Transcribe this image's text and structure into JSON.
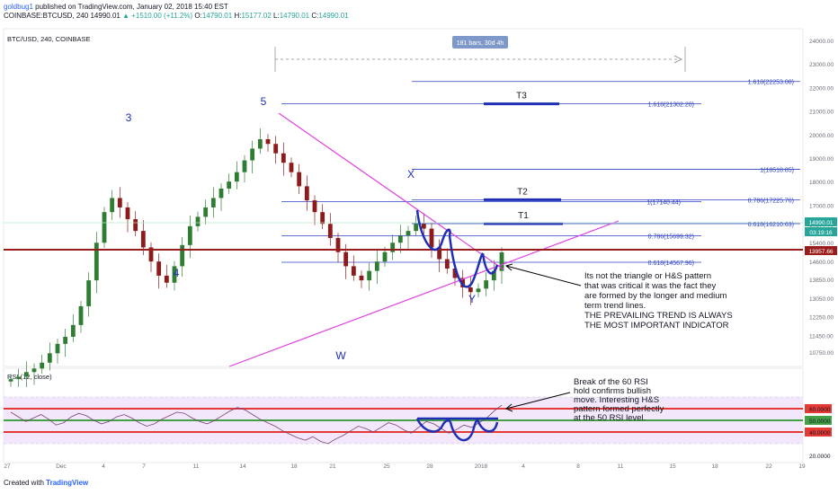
{
  "header": {
    "user": "goldbug1",
    "published": "published on TradingView.com, January 02, 2018 15:40 EST",
    "symbol": "COINBASE:BTCUSD, 240",
    "last": "14990.01",
    "change": "▲ +1510.00 (+11.2%)",
    "o_label": "O:",
    "o": "14790.01",
    "h_label": "H:",
    "h": "15177.02",
    "l_label": "L:",
    "l": "14790.01",
    "c_label": "C:",
    "c": "14990.01"
  },
  "footer": {
    "created_with": "Created with",
    "brand": "TradingView"
  },
  "chart_data": [
    {
      "type": "candlestick",
      "title": "BTC/USD, 240, COINBASE",
      "x_ticks": [
        "27",
        "Dec",
        "4",
        "7",
        "11",
        "14",
        "18",
        "21",
        "25",
        "28",
        "2018",
        "4",
        "8",
        "11",
        "15",
        "18",
        "22",
        "19"
      ],
      "y_ticks": [
        "24000.00",
        "23000.00",
        "22000.00",
        "21000.00",
        "20000.00",
        "19000.00",
        "18000.00",
        "17000.00",
        "16200.00",
        "15400.00",
        "14600.00",
        "13850.00",
        "13050.00",
        "12250.00",
        "11450.00",
        "10750.00"
      ],
      "price_labels": {
        "last": "14990.01",
        "countdown": "03:19:16",
        "level": "13957.66"
      },
      "measure_label": "181 bars, 30d 4h",
      "fib_levels": [
        {
          "label": "1.618(22253.08)",
          "value": 22253.08
        },
        {
          "label": "1.618(21302.20)",
          "value": 21302.2
        },
        {
          "label": "1(18518.85)",
          "value": 18518.85
        },
        {
          "label": "1(17140.44)",
          "value": 17140.44
        },
        {
          "label": "0.786(17225.76)",
          "value": 17225.76
        },
        {
          "label": "0.618(16210.63)",
          "value": 16210.63
        },
        {
          "label": "0.786(15699.32)",
          "value": 15699.32
        },
        {
          "label": "0.618(14567.96)",
          "value": 14567.96
        }
      ],
      "targets": [
        "T3",
        "T2",
        "T1"
      ],
      "wave_labels": [
        "3",
        "5",
        "4",
        "W",
        "X",
        "Y"
      ],
      "annotation": "Its not the triangle or H&S pattern that was critical it was the fact they are formed by the longer and medium term trend lines.\n\nTHE PREVAILING TREND IS ALWAYS THE MOST IMPORTANT INDICATOR",
      "close_series": [
        9600,
        9700,
        9900,
        10050,
        10300,
        10700,
        11100,
        11400,
        11900,
        12700,
        13800,
        15400,
        16700,
        17300,
        16900,
        16400,
        15900,
        15200,
        14600,
        14000,
        13700,
        14400,
        15300,
        16100,
        16500,
        16900,
        17300,
        17700,
        18000,
        18400,
        18900,
        19400,
        19800,
        19600,
        19200,
        18800,
        18400,
        17800,
        17200,
        16700,
        16200,
        15600,
        15000,
        14400,
        14000,
        13800,
        14200,
        14600,
        15000,
        15400,
        15700,
        15900,
        16200,
        16000,
        15200,
        14700,
        14300,
        13900,
        13500,
        13300,
        13450,
        13800,
        14200,
        14990
      ]
    },
    {
      "type": "line",
      "title": "RSI (12, close)",
      "y_ticks": [
        "60.0000",
        "50.0000",
        "40.0000",
        "20.0000"
      ],
      "levels": [
        60,
        50,
        40
      ],
      "annotation": "Break of the 60 RSI hold confirms bullish move. Interesting H&S pattern formed perfectly at the 50 RSI level.",
      "values": [
        57,
        53,
        49,
        52,
        55,
        51,
        46,
        48,
        53,
        56,
        54,
        50,
        47,
        49,
        53,
        55,
        52,
        48,
        45,
        47,
        51,
        54,
        57,
        56,
        52,
        49,
        47,
        50,
        54,
        58,
        61,
        59,
        55,
        51,
        48,
        45,
        41,
        38,
        35,
        33,
        36,
        32,
        30,
        34,
        37,
        41,
        45,
        43,
        40,
        44,
        48,
        46,
        42,
        39,
        44,
        49,
        47,
        43,
        39,
        42,
        46,
        44,
        48,
        52,
        58,
        63
      ]
    }
  ]
}
